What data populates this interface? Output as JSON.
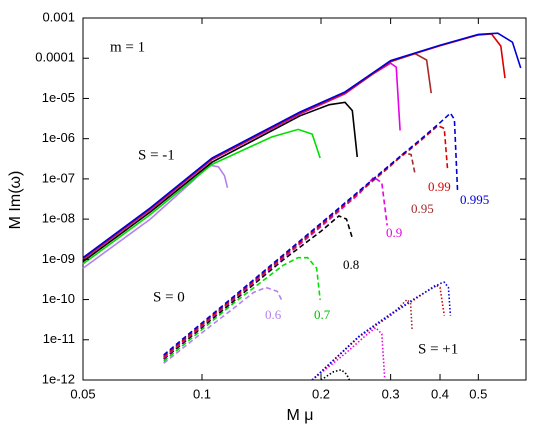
{
  "chart_data": {
    "type": "line",
    "x_label": "M μ",
    "y_label": "M Im(ω)",
    "xscale": "log",
    "yscale": "log",
    "xlim": [
      0.05,
      0.66
    ],
    "ylim": [
      1e-12,
      0.001
    ],
    "xticks": [
      0.05,
      0.1,
      0.2,
      0.3,
      0.4,
      0.5
    ],
    "yticks": [
      {
        "value": 1e-12,
        "label": "1e-12"
      },
      {
        "value": 1e-11,
        "label": "1e-11"
      },
      {
        "value": 1e-10,
        "label": "1e-10"
      },
      {
        "value": 1e-09,
        "label": "1e-09"
      },
      {
        "value": 1e-08,
        "label": "1e-08"
      },
      {
        "value": 1e-07,
        "label": "1e-07"
      },
      {
        "value": 1e-06,
        "label": "1e-06"
      },
      {
        "value": 1e-05,
        "label": "1e-05"
      },
      0.0001,
      0.001
    ],
    "annotations": [
      "m = 1",
      "S = -1",
      "S = 0",
      "S = +1",
      "0.6",
      "0.7",
      "0.8",
      "0.9",
      "0.95",
      "0.99",
      "0.995"
    ],
    "series": [
      {
        "color": "#b480f0",
        "dash": "solid",
        "x": [
          0.05,
          0.074,
          0.095,
          0.104,
          0.11,
          0.114,
          0.116
        ],
        "values": [
          6e-10,
          1e-08,
          9e-08,
          2.2e-07,
          2e-07,
          1.2e-07,
          6e-08
        ]
      },
      {
        "color": "#00e000",
        "dash": "solid",
        "x": [
          0.05,
          0.074,
          0.106,
          0.15,
          0.175,
          0.19,
          0.199
        ],
        "values": [
          7.7e-10,
          1.3e-08,
          2.3e-07,
          1.1e-06,
          1.7e-06,
          1.3e-06,
          3.3e-07
        ]
      },
      {
        "color": "#000000",
        "dash": "solid",
        "x": [
          0.05,
          0.074,
          0.106,
          0.177,
          0.21,
          0.23,
          0.24,
          0.247
        ],
        "values": [
          8.8e-10,
          1.5e-08,
          2.6e-07,
          3.7e-06,
          7e-06,
          8e-06,
          5e-06,
          3.5e-07
        ]
      },
      {
        "color": "#e800e8",
        "dash": "solid",
        "x": [
          0.05,
          0.074,
          0.106,
          0.177,
          0.23,
          0.27,
          0.3,
          0.31,
          0.317
        ],
        "values": [
          9.9e-10,
          1.7e-08,
          3e-07,
          4.1e-06,
          1.3e-05,
          4e-05,
          7.5e-05,
          6e-05,
          1.6e-06
        ]
      },
      {
        "color": "#a52a2a",
        "dash": "solid",
        "x": [
          0.05,
          0.074,
          0.106,
          0.177,
          0.23,
          0.3,
          0.346,
          0.37,
          0.38
        ],
        "values": [
          1.02e-09,
          1.77e-08,
          3.1e-07,
          4.3e-06,
          1.35e-05,
          8.2e-05,
          0.00013,
          9e-05,
          1.35e-05
        ]
      },
      {
        "color": "#dd0000",
        "dash": "solid",
        "x": [
          0.05,
          0.074,
          0.106,
          0.177,
          0.23,
          0.3,
          0.4,
          0.5,
          0.54,
          0.57,
          0.584
        ],
        "values": [
          1.07e-09,
          1.85e-08,
          3.2e-07,
          4.5e-06,
          1.4e-05,
          8.5e-05,
          0.000205,
          0.00038,
          0.0004,
          0.0002,
          3.2e-05
        ]
      },
      {
        "color": "#0000dd",
        "dash": "solid",
        "x": [
          0.05,
          0.074,
          0.106,
          0.177,
          0.23,
          0.3,
          0.4,
          0.5,
          0.56,
          0.61,
          0.64
        ],
        "values": [
          1.1e-09,
          1.9e-08,
          3.3e-07,
          4.6e-06,
          1.45e-05,
          8.7e-05,
          0.00021,
          0.00039,
          0.00042,
          0.00025,
          5.7e-05
        ]
      },
      {
        "color": "#b480f0",
        "dash": "dashed",
        "x": [
          0.08,
          0.1,
          0.12,
          0.135,
          0.145,
          0.155,
          0.16
        ],
        "values": [
          2.6e-12,
          1.5e-11,
          6e-11,
          1.5e-10,
          2e-10,
          1.6e-10,
          8.7e-11
        ]
      },
      {
        "color": "#00e000",
        "dash": "dashed",
        "x": [
          0.08,
          0.12,
          0.16,
          0.175,
          0.185,
          0.195,
          0.199
        ],
        "values": [
          2.9e-12,
          8e-11,
          7e-10,
          1.1e-09,
          1.1e-09,
          6e-10,
          9.8e-11
        ]
      },
      {
        "color": "#000000",
        "dash": "dashed",
        "x": [
          0.08,
          0.12,
          0.16,
          0.2,
          0.222,
          0.232,
          0.24
        ],
        "values": [
          3.3e-12,
          9e-11,
          9.5e-10,
          5e-09,
          1.2e-08,
          1e-08,
          3.4e-09
        ]
      },
      {
        "color": "#e800e8",
        "dash": "dashed",
        "x": [
          0.08,
          0.12,
          0.16,
          0.2,
          0.25,
          0.272,
          0.285,
          0.294
        ],
        "values": [
          3.5e-12,
          1e-10,
          1.05e-09,
          6.5e-09,
          4.3e-08,
          1.1e-07,
          8e-08,
          7e-09
        ]
      },
      {
        "color": "#a52a2a",
        "dash": "dashed",
        "x": [
          0.08,
          0.12,
          0.2,
          0.25,
          0.3,
          0.325,
          0.338,
          0.346
        ],
        "values": [
          3.7e-12,
          1.05e-10,
          7e-09,
          4.6e-08,
          2.1e-07,
          4.5e-07,
          4e-07,
          1.3e-07
        ]
      },
      {
        "color": "#dd0000",
        "dash": "dashed",
        "x": [
          0.08,
          0.12,
          0.2,
          0.3,
          0.35,
          0.395,
          0.41,
          0.418
        ],
        "values": [
          3.9e-12,
          1.1e-10,
          7.5e-09,
          2.2e-07,
          7.5e-07,
          2.1e-06,
          1.8e-06,
          1.7e-07
        ]
      },
      {
        "color": "#0000dd",
        "dash": "dashed",
        "x": [
          0.08,
          0.12,
          0.2,
          0.3,
          0.35,
          0.4,
          0.425,
          0.435,
          0.443
        ],
        "values": [
          4.2e-12,
          1.17e-10,
          7.9e-09,
          2.3e-07,
          8.1e-07,
          2.5e-06,
          4.3e-06,
          3e-06,
          5e-08
        ]
      },
      {
        "color": "#000000",
        "dash": "dotted",
        "x": [
          0.2,
          0.215,
          0.225,
          0.232,
          0.236
        ],
        "values": [
          1e-12,
          1.6e-12,
          1.8e-12,
          1.4e-12,
          1e-12
        ]
      },
      {
        "color": "#e800e8",
        "dash": "dotted",
        "x": [
          0.19,
          0.23,
          0.26,
          0.275,
          0.285,
          0.29
        ],
        "values": [
          1e-12,
          4.5e-12,
          1.3e-11,
          2e-11,
          1.4e-11,
          1e-12
        ]
      },
      {
        "color": "#a52a2a",
        "dash": "dotted",
        "x": [
          0.19,
          0.25,
          0.3,
          0.33,
          0.337,
          0.34
        ],
        "values": [
          1e-12,
          1.2e-11,
          4e-11,
          1e-10,
          8e-11,
          1.7e-11
        ]
      },
      {
        "color": "#dd0000",
        "dash": "dotted",
        "x": [
          0.19,
          0.25,
          0.3,
          0.35,
          0.39,
          0.4,
          0.41
        ],
        "values": [
          1e-12,
          1.2e-11,
          4.2e-11,
          1.1e-10,
          2.3e-10,
          2e-10,
          4e-11
        ]
      },
      {
        "color": "#0000dd",
        "dash": "dotted",
        "x": [
          0.19,
          0.25,
          0.3,
          0.35,
          0.4,
          0.41,
          0.42,
          0.425
        ],
        "values": [
          1e-12,
          1.25e-11,
          4.4e-11,
          1.15e-10,
          2.5e-10,
          2.7e-10,
          2e-10,
          4e-11
        ]
      }
    ]
  }
}
